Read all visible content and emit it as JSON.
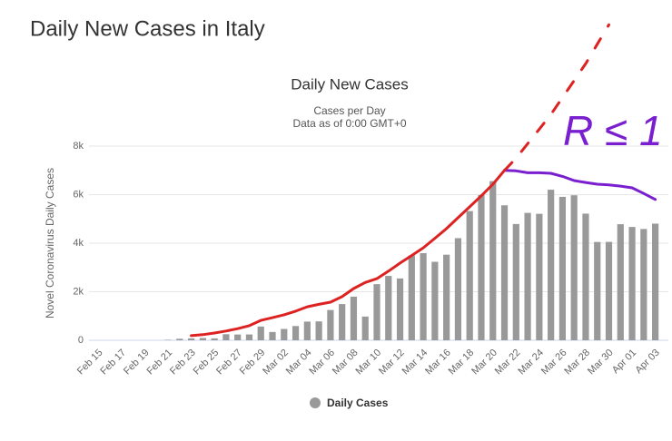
{
  "header": {
    "title": "Daily New Cases in Italy"
  },
  "chart_data": {
    "type": "bar",
    "title": "Daily New Cases",
    "subtitle": [
      "Cases per Day",
      "Data as of 0:00 GMT+0"
    ],
    "y_label": "Novel Coronavirus Daily Cases",
    "categories": [
      "Feb 15",
      null,
      "Feb 17",
      null,
      "Feb 19",
      null,
      "Feb 21",
      null,
      "Feb 23",
      null,
      "Feb 25",
      null,
      "Feb 27",
      null,
      "Feb 29",
      null,
      "Mar 02",
      null,
      "Mar 04",
      null,
      "Mar 06",
      null,
      "Mar 08",
      null,
      "Mar 10",
      null,
      "Mar 12",
      null,
      "Mar 14",
      null,
      "Mar 16",
      null,
      "Mar 18",
      null,
      "Mar 20",
      null,
      "Mar 22",
      null,
      "Mar 24",
      null,
      "Mar 26",
      null,
      "Mar 28",
      null,
      "Mar 30",
      null,
      "Apr 01",
      null,
      "Apr 03"
    ],
    "series": [
      {
        "name": "Daily Cases",
        "color": "#999999",
        "values": [
          0,
          0,
          0,
          0,
          0,
          0,
          20,
          62,
          77,
          93,
          78,
          250,
          238,
          240,
          566,
          342,
          466,
          587,
          769,
          778,
          1247,
          1492,
          1797,
          977,
          2313,
          2651,
          2547,
          3497,
          3590,
          3233,
          3526,
          4207,
          5322,
          5986,
          6557,
          5560,
          4789,
          5249,
          5210,
          6203,
          5909,
          5974,
          5217,
          4050,
          4053,
          4782,
          4668,
          4585,
          4805
        ]
      }
    ],
    "ylim": [
      0,
      8000
    ],
    "yticks": [
      0,
      {
        "value": 2000,
        "label": "2k"
      },
      {
        "value": 4000,
        "label": "4k"
      },
      {
        "value": 6000,
        "label": "6k"
      },
      {
        "value": 8000,
        "label": "8k"
      }
    ],
    "grid": true,
    "legend": "bottom",
    "annotation_lines": [
      {
        "color": "#dd2222",
        "dashed": false,
        "values": [
          null,
          null,
          null,
          null,
          null,
          null,
          null,
          null,
          190,
          230,
          300,
          380,
          480,
          600,
          820,
          930,
          1050,
          1200,
          1380,
          1480,
          1570,
          1800,
          2130,
          2380,
          2540,
          2850,
          3180,
          3490,
          3810,
          4200,
          4600,
          5050,
          5500,
          5950,
          6430,
          7000,
          null,
          null,
          null,
          null,
          null,
          null,
          null,
          null,
          null,
          null,
          null,
          null,
          null
        ]
      },
      {
        "color": "#7a1fd0",
        "dashed": false,
        "values": [
          null,
          null,
          null,
          null,
          null,
          null,
          null,
          null,
          null,
          null,
          null,
          null,
          null,
          null,
          null,
          null,
          null,
          null,
          null,
          null,
          null,
          null,
          null,
          null,
          null,
          null,
          null,
          null,
          null,
          null,
          null,
          null,
          null,
          null,
          null,
          7000,
          6980,
          6900,
          6900,
          6880,
          6750,
          6580,
          6500,
          6430,
          6400,
          6350,
          6280,
          6050,
          5800
        ]
      },
      {
        "color": "#dd2222",
        "dashed": true,
        "values": [
          null,
          null,
          null,
          null,
          null,
          null,
          null,
          null,
          null,
          null,
          null,
          null,
          null,
          null,
          null,
          null,
          null,
          null,
          null,
          null,
          null,
          null,
          null,
          null,
          null,
          null,
          null,
          null,
          null,
          null,
          null,
          null,
          null,
          null,
          null,
          7000,
          7500,
          8100,
          8700,
          9300,
          10000,
          10700,
          11400,
          12200,
          13000,
          null,
          null,
          null,
          null
        ]
      }
    ],
    "annotation_text": "R ≤ 1"
  }
}
